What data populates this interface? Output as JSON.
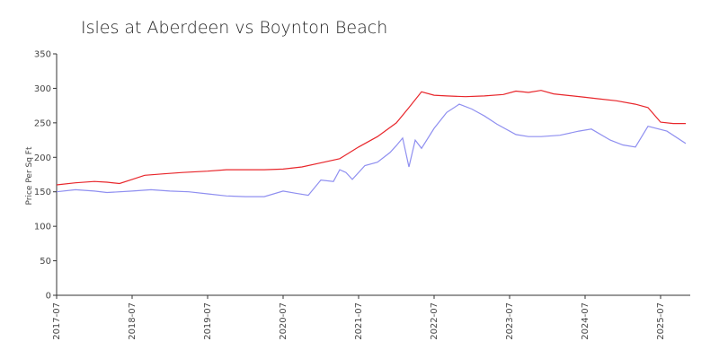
{
  "chart_data": {
    "type": "line",
    "title": "Isles at Aberdeen vs Boynton Beach",
    "xlabel": "",
    "ylabel": "Price Per Sq Ft",
    "ylim": [
      0,
      350
    ],
    "yticks": [
      0,
      50,
      100,
      150,
      200,
      250,
      300,
      350
    ],
    "xlim": [
      "2017-07",
      "2025-11"
    ],
    "xticks": [
      "2017-07",
      "2018-07",
      "2019-07",
      "2020-07",
      "2021-07",
      "2022-07",
      "2023-07",
      "2024-07",
      "2025-07"
    ],
    "grid": false,
    "legend": "none",
    "series": [
      {
        "color": "#e8262b",
        "points": [
          [
            "2017-07",
            160
          ],
          [
            "2017-10",
            163
          ],
          [
            "2018-01",
            165
          ],
          [
            "2018-03",
            164
          ],
          [
            "2018-05",
            162
          ],
          [
            "2018-07",
            168
          ],
          [
            "2018-09",
            174
          ],
          [
            "2018-12",
            176
          ],
          [
            "2019-03",
            178
          ],
          [
            "2019-07",
            180
          ],
          [
            "2019-10",
            182
          ],
          [
            "2020-01",
            182
          ],
          [
            "2020-04",
            182
          ],
          [
            "2020-07",
            183
          ],
          [
            "2020-10",
            186
          ],
          [
            "2021-01",
            192
          ],
          [
            "2021-04",
            198
          ],
          [
            "2021-07",
            215
          ],
          [
            "2021-10",
            230
          ],
          [
            "2022-01",
            250
          ],
          [
            "2022-03",
            272
          ],
          [
            "2022-05",
            295
          ],
          [
            "2022-07",
            290
          ],
          [
            "2022-09",
            289
          ],
          [
            "2022-12",
            288
          ],
          [
            "2023-03",
            289
          ],
          [
            "2023-06",
            291
          ],
          [
            "2023-08",
            296
          ],
          [
            "2023-10",
            294
          ],
          [
            "2023-12",
            297
          ],
          [
            "2024-02",
            292
          ],
          [
            "2024-04",
            290
          ],
          [
            "2024-07",
            287
          ],
          [
            "2024-09",
            285
          ],
          [
            "2024-12",
            282
          ],
          [
            "2025-03",
            277
          ],
          [
            "2025-05",
            272
          ],
          [
            "2025-07",
            251
          ],
          [
            "2025-09",
            249
          ],
          [
            "2025-11",
            249
          ]
        ]
      },
      {
        "color": "#8f8ff0",
        "points": [
          [
            "2017-07",
            150
          ],
          [
            "2017-10",
            153
          ],
          [
            "2018-01",
            151
          ],
          [
            "2018-03",
            149
          ],
          [
            "2018-07",
            151
          ],
          [
            "2018-10",
            153
          ],
          [
            "2019-01",
            151
          ],
          [
            "2019-04",
            150
          ],
          [
            "2019-07",
            147
          ],
          [
            "2019-10",
            144
          ],
          [
            "2020-01",
            143
          ],
          [
            "2020-04",
            143
          ],
          [
            "2020-07",
            151
          ],
          [
            "2020-09",
            148
          ],
          [
            "2020-11",
            145
          ],
          [
            "2021-01",
            167
          ],
          [
            "2021-03",
            165
          ],
          [
            "2021-04",
            182
          ],
          [
            "2021-05",
            178
          ],
          [
            "2021-06",
            168
          ],
          [
            "2021-08",
            188
          ],
          [
            "2021-10",
            193
          ],
          [
            "2021-12",
            207
          ],
          [
            "2022-01",
            217
          ],
          [
            "2022-02",
            228
          ],
          [
            "2022-03",
            186
          ],
          [
            "2022-04",
            225
          ],
          [
            "2022-05",
            213
          ],
          [
            "2022-07",
            242
          ],
          [
            "2022-09",
            265
          ],
          [
            "2022-11",
            277
          ],
          [
            "2023-01",
            270
          ],
          [
            "2023-03",
            260
          ],
          [
            "2023-05",
            248
          ],
          [
            "2023-08",
            233
          ],
          [
            "2023-10",
            230
          ],
          [
            "2023-12",
            230
          ],
          [
            "2024-03",
            232
          ],
          [
            "2024-06",
            238
          ],
          [
            "2024-08",
            241
          ],
          [
            "2024-11",
            225
          ],
          [
            "2025-01",
            218
          ],
          [
            "2025-03",
            215
          ],
          [
            "2025-05",
            245
          ],
          [
            "2025-08",
            238
          ],
          [
            "2025-11",
            220
          ]
        ]
      }
    ]
  }
}
